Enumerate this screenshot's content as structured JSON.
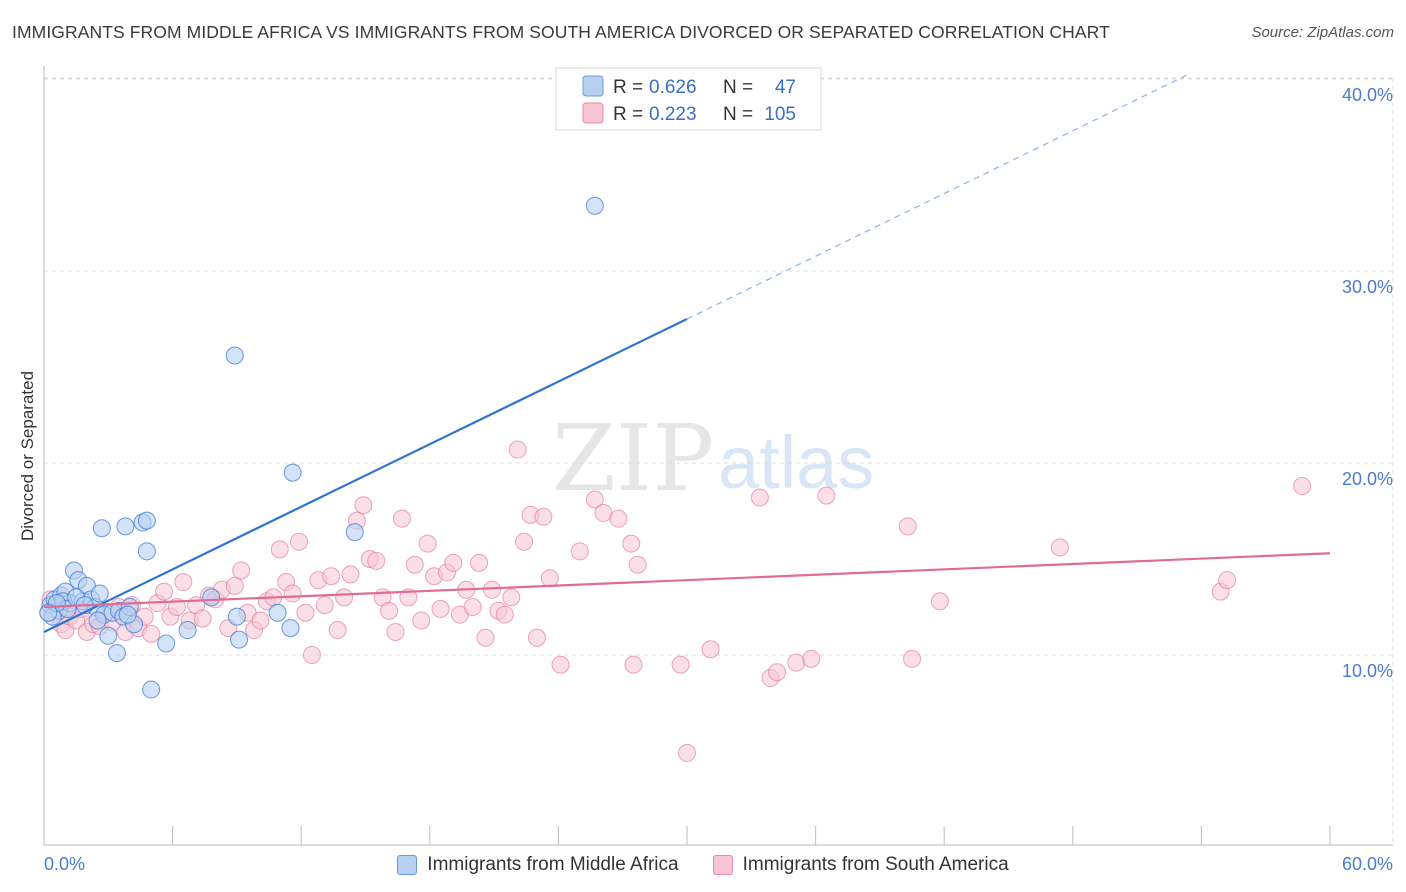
{
  "title": "IMMIGRANTS FROM MIDDLE AFRICA VS IMMIGRANTS FROM SOUTH AMERICA DIVORCED OR SEPARATED CORRELATION CHART",
  "source": "Source: ZipAtlas.com",
  "watermark": {
    "zip": "ZIP",
    "atlas": "atlas"
  },
  "colors": {
    "blue": "#2f74d0",
    "blue_fill": "#b7d0f2",
    "pink": "#e06c96",
    "pink_fill": "#f7c5d4",
    "axis_label": "#4a7cc9"
  },
  "legend": {
    "rows": [
      {
        "r_label": "R =",
        "r_value": "0.626",
        "n_label": "N =",
        "n_value": "47"
      },
      {
        "r_label": "R =",
        "r_value": "0.223",
        "n_label": "N =",
        "n_value": "105"
      }
    ]
  },
  "bottom_legend": [
    "Immigrants from Middle Africa",
    "Immigrants from South America"
  ],
  "chart_data": {
    "type": "scatter",
    "title": "IMMIGRANTS FROM MIDDLE AFRICA VS IMMIGRANTS FROM SOUTH AMERICA DIVORCED OR SEPARATED CORRELATION CHART",
    "xlabel": "",
    "ylabel": "Divorced or Separated",
    "xlim": [
      0,
      60
    ],
    "ylim": [
      0,
      41
    ],
    "x_tick_labels": {
      "min": "0.0%",
      "max": "60.0%"
    },
    "y_ticks": [
      10,
      20,
      30,
      40
    ],
    "y_tick_labels": [
      "10.0%",
      "20.0%",
      "30.0%",
      "40.0%"
    ],
    "grid": true,
    "series": [
      {
        "name": "Immigrants from Middle Africa",
        "color": "#2f74d0",
        "R": 0.626,
        "N": 47,
        "trend": {
          "x0": 0,
          "y0": 11.2,
          "x1": 30,
          "y1": 27.5,
          "dashed_to_x": 53.5,
          "dashed_to_y": 40.3
        },
        "points": [
          [
            0.3,
            12.6
          ],
          [
            0.5,
            12.9
          ],
          [
            0.7,
            12.3
          ],
          [
            0.8,
            13.1
          ],
          [
            1.0,
            13.3
          ],
          [
            1.2,
            12.7
          ],
          [
            1.4,
            14.4
          ],
          [
            1.6,
            13.9
          ],
          [
            1.8,
            12.8
          ],
          [
            2.0,
            13.6
          ],
          [
            2.2,
            12.9
          ],
          [
            2.4,
            12.5
          ],
          [
            2.6,
            13.2
          ],
          [
            2.8,
            12.1
          ],
          [
            3.0,
            11.0
          ],
          [
            3.2,
            12.2
          ],
          [
            3.5,
            12.3
          ],
          [
            3.7,
            12.0
          ],
          [
            4.0,
            12.5
          ],
          [
            4.2,
            11.6
          ],
          [
            2.7,
            16.6
          ],
          [
            3.8,
            16.7
          ],
          [
            4.6,
            16.9
          ],
          [
            4.8,
            17.0
          ],
          [
            4.8,
            15.4
          ],
          [
            3.4,
            10.1
          ],
          [
            5.0,
            8.2
          ],
          [
            5.7,
            10.6
          ],
          [
            6.7,
            11.3
          ],
          [
            7.8,
            13.0
          ],
          [
            9.0,
            12.0
          ],
          [
            9.1,
            10.8
          ],
          [
            10.9,
            12.2
          ],
          [
            11.5,
            11.4
          ],
          [
            8.9,
            25.6
          ],
          [
            11.6,
            19.5
          ],
          [
            14.5,
            16.4
          ],
          [
            25.7,
            33.4
          ],
          [
            0.4,
            12.0
          ],
          [
            0.9,
            12.8
          ],
          [
            1.1,
            12.4
          ],
          [
            1.5,
            13.0
          ],
          [
            1.9,
            12.6
          ],
          [
            2.5,
            11.8
          ],
          [
            3.9,
            12.1
          ],
          [
            0.6,
            12.7
          ],
          [
            0.2,
            12.2
          ]
        ]
      },
      {
        "name": "Immigrants from South America",
        "color": "#e06c96",
        "R": 0.223,
        "N": 105,
        "trend": {
          "x0": 0,
          "y0": 12.5,
          "x1": 60,
          "y1": 15.3
        },
        "points": [
          [
            0.2,
            12.2
          ],
          [
            0.5,
            12.7
          ],
          [
            0.8,
            11.6
          ],
          [
            1.0,
            11.3
          ],
          [
            1.2,
            12.0
          ],
          [
            1.5,
            11.8
          ],
          [
            1.8,
            12.4
          ],
          [
            2.0,
            11.2
          ],
          [
            2.3,
            11.6
          ],
          [
            2.6,
            11.5
          ],
          [
            2.9,
            12.2
          ],
          [
            3.2,
            11.7
          ],
          [
            3.5,
            12.5
          ],
          [
            3.8,
            11.2
          ],
          [
            4.1,
            12.6
          ],
          [
            4.4,
            11.4
          ],
          [
            4.7,
            12.0
          ],
          [
            5.0,
            11.1
          ],
          [
            5.3,
            12.7
          ],
          [
            5.6,
            13.3
          ],
          [
            5.9,
            12.0
          ],
          [
            6.2,
            12.5
          ],
          [
            6.5,
            13.8
          ],
          [
            6.8,
            11.8
          ],
          [
            7.1,
            12.6
          ],
          [
            7.4,
            11.9
          ],
          [
            7.7,
            13.1
          ],
          [
            8.0,
            12.9
          ],
          [
            8.3,
            13.4
          ],
          [
            8.6,
            11.4
          ],
          [
            8.9,
            13.6
          ],
          [
            9.2,
            14.4
          ],
          [
            9.5,
            12.2
          ],
          [
            9.8,
            11.3
          ],
          [
            10.1,
            11.8
          ],
          [
            10.4,
            12.8
          ],
          [
            10.7,
            13.0
          ],
          [
            11.0,
            15.5
          ],
          [
            11.3,
            13.8
          ],
          [
            11.6,
            13.2
          ],
          [
            11.9,
            15.9
          ],
          [
            12.2,
            12.2
          ],
          [
            12.5,
            10.0
          ],
          [
            12.8,
            13.9
          ],
          [
            13.1,
            12.6
          ],
          [
            13.4,
            14.1
          ],
          [
            13.7,
            11.3
          ],
          [
            14.0,
            13.0
          ],
          [
            14.3,
            14.2
          ],
          [
            14.6,
            17.0
          ],
          [
            14.9,
            17.8
          ],
          [
            15.2,
            15.0
          ],
          [
            15.5,
            14.9
          ],
          [
            15.8,
            13.0
          ],
          [
            16.1,
            12.3
          ],
          [
            16.4,
            11.2
          ],
          [
            16.7,
            17.1
          ],
          [
            17.0,
            13.0
          ],
          [
            17.3,
            14.7
          ],
          [
            17.6,
            11.8
          ],
          [
            17.9,
            15.8
          ],
          [
            18.2,
            14.1
          ],
          [
            18.5,
            12.4
          ],
          [
            18.8,
            14.3
          ],
          [
            19.1,
            14.8
          ],
          [
            19.4,
            12.1
          ],
          [
            19.7,
            13.4
          ],
          [
            20.0,
            12.5
          ],
          [
            20.3,
            14.8
          ],
          [
            20.6,
            10.9
          ],
          [
            20.9,
            13.4
          ],
          [
            21.2,
            12.3
          ],
          [
            21.5,
            12.1
          ],
          [
            21.8,
            13.0
          ],
          [
            22.1,
            20.7
          ],
          [
            22.4,
            15.9
          ],
          [
            22.7,
            17.3
          ],
          [
            23.0,
            10.9
          ],
          [
            23.3,
            17.2
          ],
          [
            23.6,
            14.0
          ],
          [
            24.1,
            9.5
          ],
          [
            25.0,
            15.4
          ],
          [
            25.7,
            18.1
          ],
          [
            26.1,
            17.4
          ],
          [
            26.8,
            17.1
          ],
          [
            27.4,
            15.8
          ],
          [
            27.7,
            14.7
          ],
          [
            27.5,
            9.5
          ],
          [
            29.7,
            9.5
          ],
          [
            30.0,
            4.9
          ],
          [
            31.1,
            10.3
          ],
          [
            33.4,
            18.2
          ],
          [
            33.9,
            8.8
          ],
          [
            34.2,
            9.1
          ],
          [
            35.1,
            9.6
          ],
          [
            35.8,
            9.8
          ],
          [
            36.5,
            18.3
          ],
          [
            40.3,
            16.7
          ],
          [
            40.5,
            9.8
          ],
          [
            41.8,
            12.8
          ],
          [
            47.4,
            15.6
          ],
          [
            54.9,
            13.3
          ],
          [
            55.2,
            13.9
          ],
          [
            58.7,
            18.8
          ],
          [
            0.3,
            12.9
          ]
        ]
      }
    ]
  }
}
